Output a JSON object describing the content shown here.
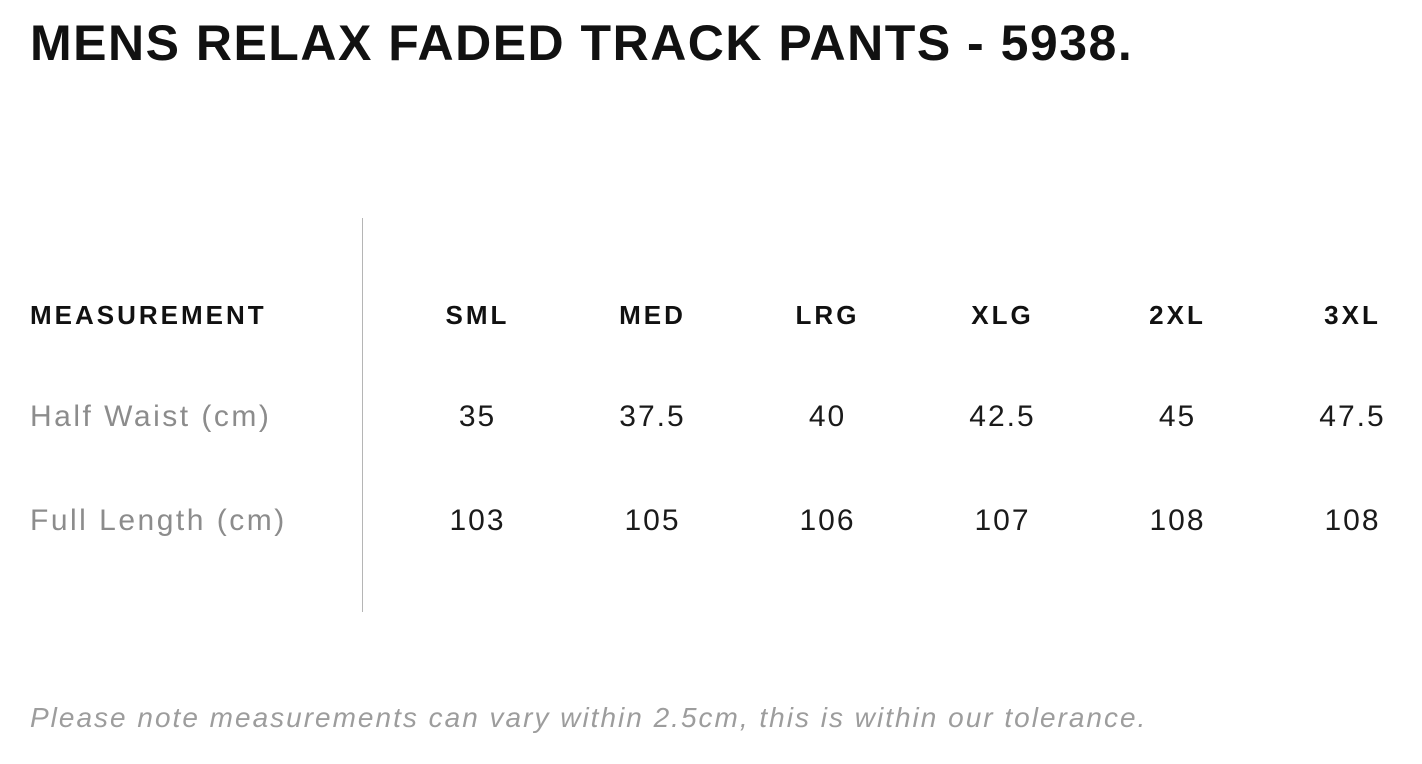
{
  "page": {
    "title": "MENS RELAX FADED TRACK PANTS - 5938.",
    "note": "Please note measurements can vary within 2.5cm, this is within our tolerance."
  },
  "size_chart": {
    "header_label": "MEASUREMENT",
    "sizes": [
      "SML",
      "MED",
      "LRG",
      "XLG",
      "2XL",
      "3XL"
    ],
    "rows": [
      {
        "label": "Half Waist (cm)",
        "values": [
          "35",
          "37.5",
          "40",
          "42.5",
          "45",
          "47.5"
        ]
      },
      {
        "label": "Full Length (cm)",
        "values": [
          "103",
          "105",
          "106",
          "107",
          "108",
          "108"
        ]
      }
    ]
  },
  "colors": {
    "text": "#111111",
    "label_gray": "#8c8c8c",
    "note_gray": "#9d9d9d",
    "divider": "#b5b5b5",
    "background": "#ffffff"
  }
}
